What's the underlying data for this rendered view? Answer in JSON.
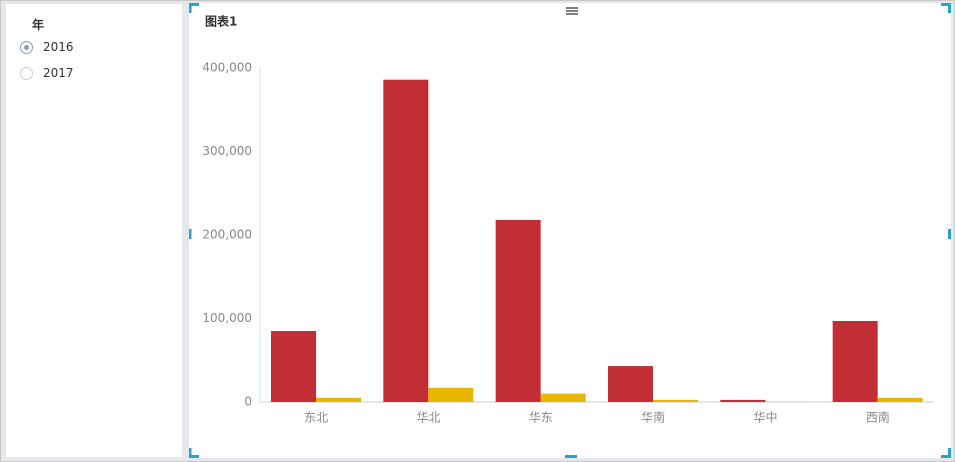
{
  "filter": {
    "title": "年",
    "options": [
      {
        "label": "2016",
        "checked": true
      },
      {
        "label": "2017",
        "checked": false
      }
    ]
  },
  "chart_data": {
    "type": "bar",
    "title": "图表1",
    "categories": [
      "东北",
      "华北",
      "华东",
      "华南",
      "华中",
      "西南"
    ],
    "series": [
      {
        "color": "#c12e34",
        "values": [
          85000,
          386000,
          218000,
          43000,
          2500,
          97000
        ]
      },
      {
        "color": "#e6b600",
        "values": [
          5000,
          17000,
          10000,
          2500,
          300,
          5000
        ]
      }
    ],
    "ylim": [
      0,
      400000
    ],
    "yticks": [
      0,
      {
        "value": 100000,
        "label": "100,000"
      },
      {
        "value": 200000,
        "label": "200,000"
      },
      {
        "value": 300000,
        "label": "300,000"
      },
      {
        "value": 400000,
        "label": "400,000"
      }
    ],
    "grid": false
  }
}
